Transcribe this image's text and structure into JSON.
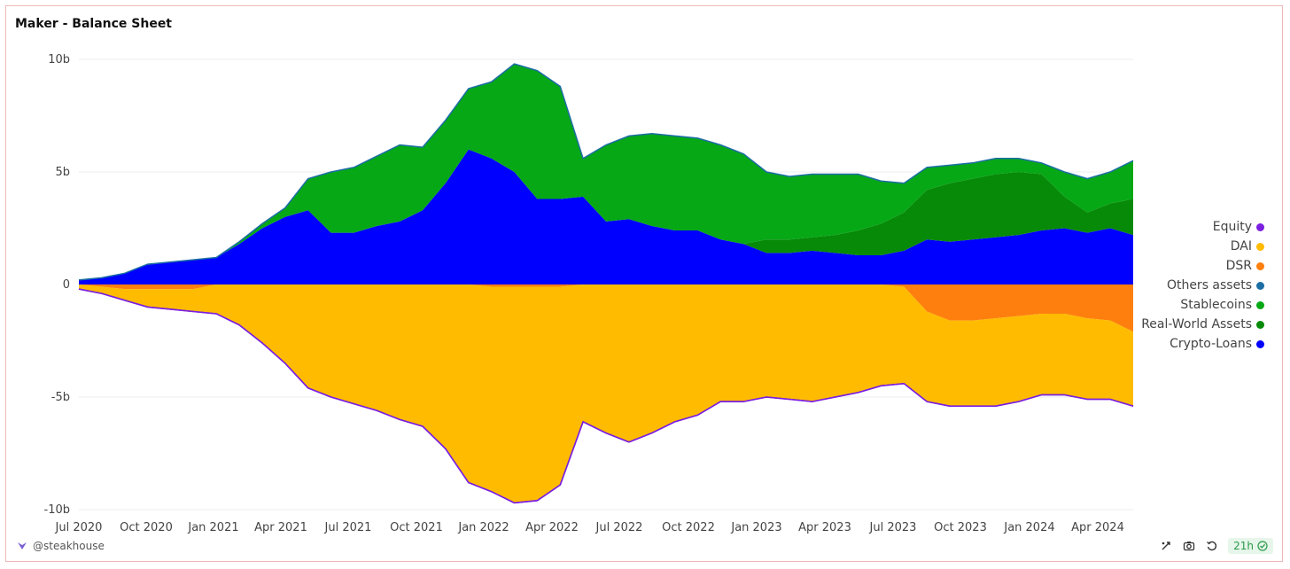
{
  "title": "Maker - Balance Sheet",
  "footer": {
    "author": "@steakhouse",
    "freshness": "21h"
  },
  "icons": {
    "author": "steakhouse-logo-icon",
    "refresh": "refresh-icon",
    "camera": "camera-icon",
    "undo": "undo-icon",
    "check": "check-circle-icon"
  },
  "chart_data": {
    "type": "area",
    "stacked": true,
    "xlabel": "",
    "ylabel": "",
    "ylim": [
      -10000000000,
      10000000000
    ],
    "yticks": [
      {
        "value": 10000000000,
        "label": "10b"
      },
      {
        "value": 5000000000,
        "label": "5b"
      },
      {
        "value": 0,
        "label": "0"
      },
      {
        "value": -5000000000,
        "label": "-5b"
      },
      {
        "value": -10000000000,
        "label": "-10b"
      }
    ],
    "xticks": [
      "Jul 2020",
      "Oct 2020",
      "Jan 2021",
      "Apr 2021",
      "Jul 2021",
      "Oct 2021",
      "Jan 2022",
      "Apr 2022",
      "Jul 2022",
      "Oct 2022",
      "Jan 2023",
      "Apr 2023",
      "Jul 2023",
      "Oct 2023",
      "Jan 2024",
      "Apr 2024"
    ],
    "legend_position": "right",
    "x": [
      "2020-07",
      "2020-08",
      "2020-09",
      "2020-10",
      "2020-11",
      "2020-12",
      "2021-01",
      "2021-02",
      "2021-03",
      "2021-04",
      "2021-05",
      "2021-06",
      "2021-07",
      "2021-08",
      "2021-09",
      "2021-10",
      "2021-11",
      "2021-12",
      "2022-01",
      "2022-02",
      "2022-03",
      "2022-04",
      "2022-05",
      "2022-06",
      "2022-07",
      "2022-08",
      "2022-09",
      "2022-10",
      "2022-11",
      "2022-12",
      "2023-01",
      "2023-02",
      "2023-03",
      "2023-04",
      "2023-05",
      "2023-06",
      "2023-07",
      "2023-08",
      "2023-09",
      "2023-10",
      "2023-11",
      "2023-12",
      "2024-01",
      "2024-02",
      "2024-03",
      "2024-04",
      "2024-05"
    ],
    "series": [
      {
        "name": "Crypto-Loans",
        "color": "#0000ff",
        "side": "positive",
        "values": [
          0.2,
          0.3,
          0.5,
          0.9,
          1.0,
          1.1,
          1.2,
          1.8,
          2.5,
          3.0,
          3.3,
          2.3,
          2.3,
          2.6,
          2.8,
          3.3,
          4.5,
          6.0,
          5.6,
          5.0,
          3.8,
          3.8,
          3.9,
          2.8,
          2.9,
          2.6,
          2.4,
          2.4,
          2.0,
          1.8,
          1.4,
          1.4,
          1.5,
          1.4,
          1.3,
          1.3,
          1.5,
          2.0,
          1.9,
          2.0,
          2.1,
          2.2,
          2.4,
          2.5,
          2.3,
          2.5,
          2.2
        ]
      },
      {
        "name": "Real-World Assets",
        "color": "#078a07",
        "side": "positive",
        "values": [
          0,
          0,
          0,
          0,
          0,
          0,
          0,
          0,
          0,
          0,
          0,
          0,
          0,
          0,
          0,
          0,
          0,
          0,
          0,
          0,
          0,
          0,
          0,
          0,
          0,
          0,
          0,
          0,
          0,
          0,
          0.6,
          0.6,
          0.6,
          0.8,
          1.1,
          1.4,
          1.7,
          2.2,
          2.6,
          2.7,
          2.8,
          2.8,
          2.5,
          1.4,
          0.9,
          1.1,
          1.6
        ]
      },
      {
        "name": "Stablecoins",
        "color": "#06a816",
        "side": "positive",
        "values": [
          0,
          0,
          0,
          0,
          0,
          0,
          0,
          0.1,
          0.2,
          0.4,
          1.4,
          2.7,
          2.9,
          3.1,
          3.4,
          2.8,
          2.8,
          2.7,
          3.4,
          4.8,
          5.7,
          5.0,
          1.7,
          3.4,
          3.7,
          4.1,
          4.2,
          4.1,
          4.2,
          4.0,
          3.0,
          2.8,
          2.8,
          2.7,
          2.5,
          1.9,
          1.3,
          1.0,
          0.8,
          0.7,
          0.7,
          0.6,
          0.5,
          1.1,
          1.5,
          1.4,
          1.7
        ]
      },
      {
        "name": "Others assets",
        "color": "#1c6ea4",
        "side": "positive",
        "values": [
          0,
          0,
          0,
          0,
          0,
          0,
          0,
          0,
          0,
          0,
          0,
          0,
          0,
          0,
          0,
          0,
          0,
          0,
          0,
          0,
          0,
          0,
          0,
          0,
          0,
          0,
          0,
          0,
          0,
          0,
          0,
          0,
          0,
          0,
          0,
          0,
          0,
          0,
          0,
          0,
          0,
          0,
          0,
          0,
          0,
          0,
          0
        ]
      },
      {
        "name": "DSR",
        "color": "#ff7f0e",
        "side": "negative",
        "values": [
          0,
          -0.1,
          -0.2,
          -0.2,
          -0.2,
          -0.2,
          0,
          0,
          0,
          0,
          0,
          0,
          0,
          0,
          0,
          0,
          0,
          0,
          -0.1,
          -0.1,
          -0.1,
          -0.1,
          0,
          0,
          0,
          0,
          0,
          0,
          0,
          0,
          0,
          0,
          0,
          0,
          0,
          0,
          -0.1,
          -1.2,
          -1.6,
          -1.6,
          -1.5,
          -1.4,
          -1.3,
          -1.3,
          -1.5,
          -1.6,
          -2.1
        ]
      },
      {
        "name": "DAI",
        "color": "#ffbb00",
        "side": "negative",
        "values": [
          -0.2,
          -0.3,
          -0.5,
          -0.8,
          -0.9,
          -1.0,
          -1.3,
          -1.8,
          -2.6,
          -3.5,
          -4.6,
          -5.0,
          -5.3,
          -5.6,
          -6.0,
          -6.3,
          -7.3,
          -8.8,
          -9.1,
          -9.6,
          -9.5,
          -8.8,
          -6.1,
          -6.6,
          -7.0,
          -6.6,
          -6.1,
          -5.8,
          -5.2,
          -5.2,
          -5.0,
          -5.1,
          -5.2,
          -5.0,
          -4.8,
          -4.5,
          -4.3,
          -4.0,
          -3.8,
          -3.8,
          -3.9,
          -3.8,
          -3.6,
          -3.6,
          -3.6,
          -3.5,
          -3.3
        ]
      },
      {
        "name": "Equity",
        "color": "#7b1fe0",
        "side": "negative",
        "values": [
          0,
          0,
          0,
          0,
          0,
          0,
          0,
          0,
          0,
          0,
          0,
          0,
          0,
          0,
          0,
          0,
          0,
          0,
          0,
          0,
          0,
          0,
          0,
          0,
          0,
          0,
          0,
          0,
          0,
          0,
          0,
          0,
          0,
          0,
          0,
          0,
          0,
          0,
          0,
          0,
          0,
          0,
          0,
          0,
          0,
          0,
          0
        ]
      }
    ],
    "legend": [
      "Equity",
      "DAI",
      "DSR",
      "Others assets",
      "Stablecoins",
      "Real-World Assets",
      "Crypto-Loans"
    ]
  }
}
